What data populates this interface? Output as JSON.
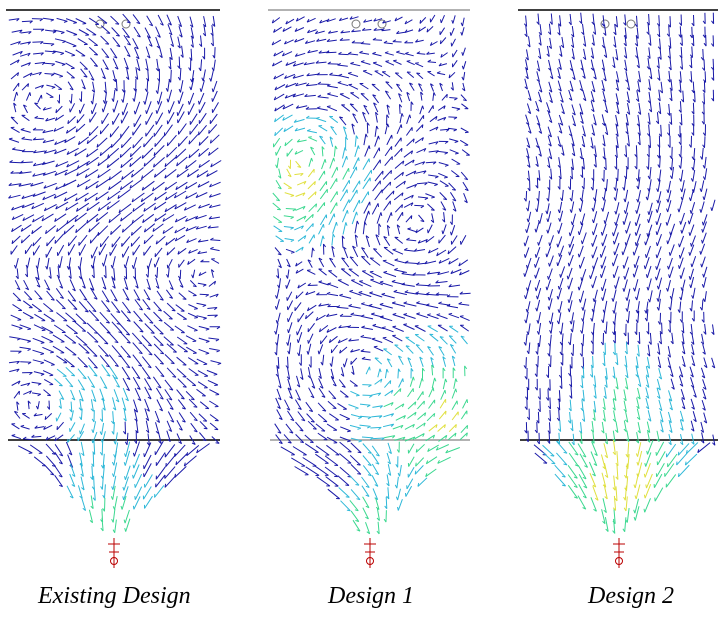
{
  "captions": [
    "Existing Design",
    "Design 1",
    "Design 2"
  ]
}
